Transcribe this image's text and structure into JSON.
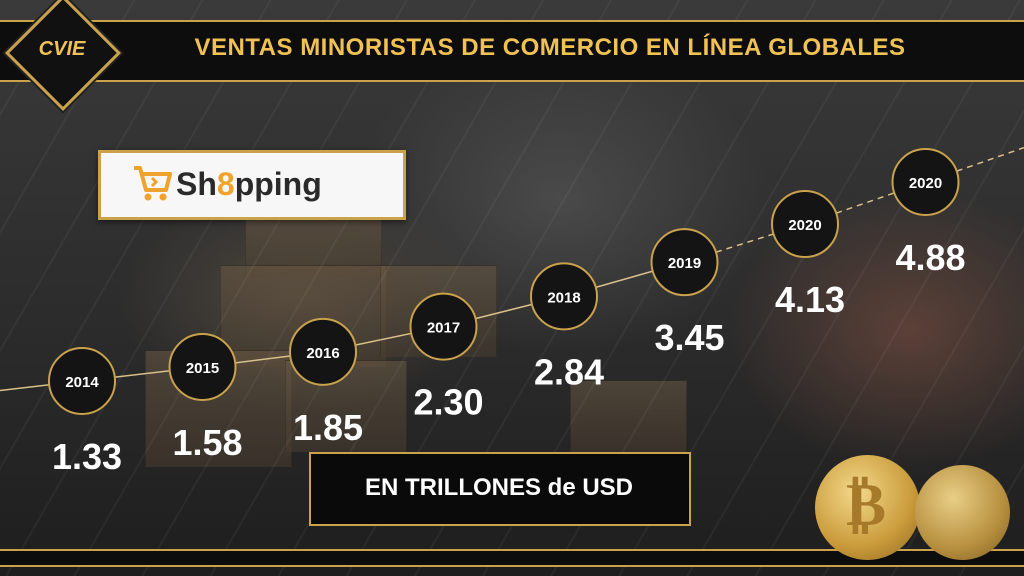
{
  "header": {
    "title": "VENTAS MINORISTAS DE COMERCIO EN LÍNEA GLOBALES",
    "logo_text": "CVIE"
  },
  "brand": {
    "prefix": "Sh",
    "eight": "8",
    "suffix": "pping"
  },
  "unit_label": "EN TRILLONES de USD",
  "colors": {
    "gold": "#c9a24b",
    "title_gold": "#f0c254",
    "accent_orange": "#f0a32c"
  },
  "icons": {
    "cart": "cart-icon",
    "coin": "bitcoin-coin-icon"
  },
  "chart_data": {
    "type": "line",
    "categories": [
      "2014",
      "2015",
      "2016",
      "2017",
      "2018",
      "2019",
      "2020",
      "2020"
    ],
    "values": [
      1.33,
      1.58,
      1.85,
      2.3,
      2.84,
      3.45,
      4.13,
      4.88
    ],
    "value_labels": [
      "1.33",
      "1.58",
      "1.85",
      "2.30",
      "2.84",
      "3.45",
      "4.13",
      "4.88"
    ],
    "projected_from_index": 5,
    "title": "VENTAS MINORISTAS DE COMERCIO EN LÍNEA GLOBALES",
    "xlabel": "",
    "ylabel": "",
    "grid": false
  }
}
